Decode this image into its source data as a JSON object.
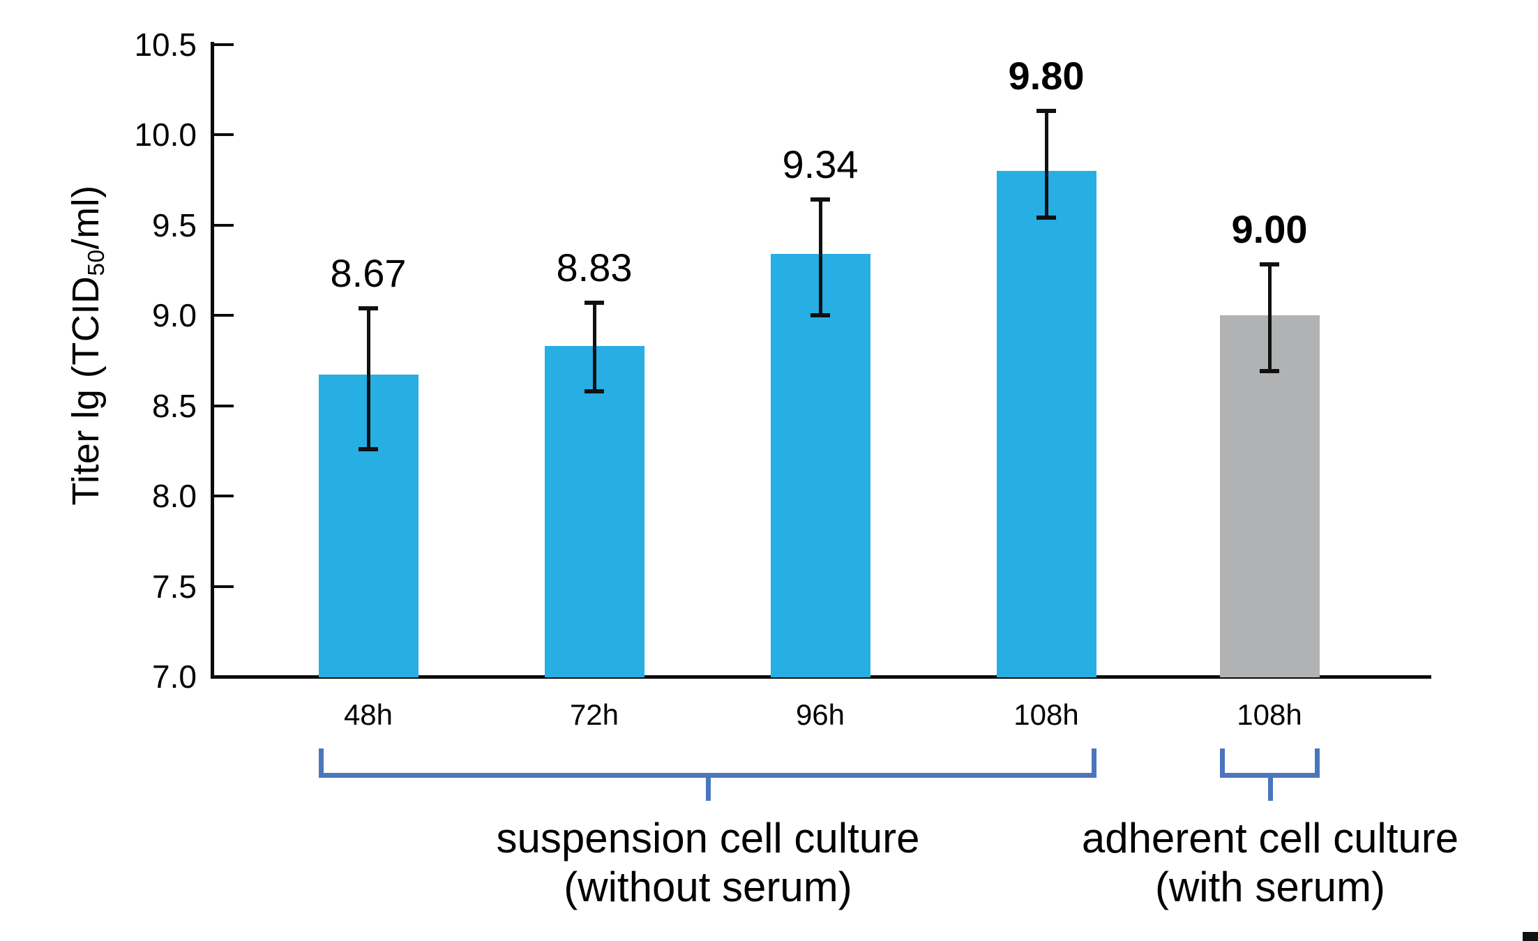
{
  "figure": {
    "background": "#FFFFFF"
  },
  "chart_data": {
    "type": "bar",
    "title": "",
    "ylabel": "Titer lg (TCID50/ml)",
    "ylabel_parts": {
      "pre": "Titer lg (TCID",
      "sub": "50",
      "post": "/ml)"
    },
    "xlabel": "",
    "ylim": [
      7.0,
      10.5
    ],
    "ytick_step": 0.5,
    "yticks": [
      10.5,
      10.0,
      9.5,
      9.0,
      8.5,
      8.0,
      7.5,
      7.0
    ],
    "ytick_labels": [
      "10.5",
      "10.0",
      "9.5",
      "9.0",
      "8.5",
      "8.0",
      "7.5",
      "7.0"
    ],
    "categories": [
      "48h",
      "72h",
      "96h",
      "108h",
      "108h"
    ],
    "values": [
      8.67,
      8.83,
      9.34,
      9.8,
      9.0
    ],
    "value_labels": [
      "8.67",
      "8.83",
      "9.34",
      "9.80",
      "9.00"
    ],
    "value_label_bold": [
      false,
      false,
      false,
      true,
      true
    ],
    "error_upper": [
      9.04,
      9.07,
      9.64,
      10.13,
      9.28
    ],
    "error_lower": [
      8.26,
      8.58,
      9.0,
      9.54,
      8.69
    ],
    "bar_colors": [
      "#27AEE3",
      "#27AEE3",
      "#27AEE3",
      "#27AEE3",
      "#B0B2B4"
    ],
    "groups": [
      {
        "line1": "suspension cell culture",
        "line2": "(without serum)",
        "from": 0,
        "to": 3
      },
      {
        "line1": "adherent cell culture",
        "line2": "(with serum)",
        "from": 4,
        "to": 4
      }
    ],
    "grid": false,
    "legend": "none"
  },
  "colors": {
    "bar_blue": "#27AEE3",
    "bar_gray": "#B0B2B4",
    "bracket_blue": "#4B76BD",
    "axis_black": "#0B0B0B",
    "text_black": "#000000"
  }
}
